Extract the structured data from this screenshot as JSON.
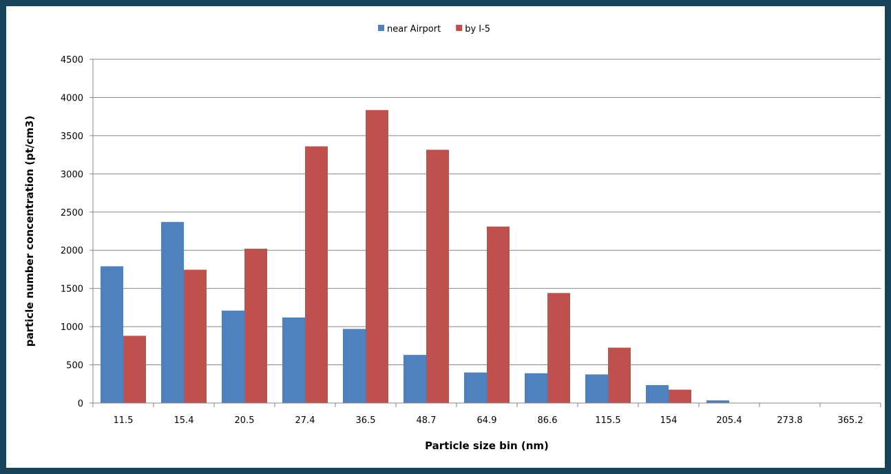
{
  "chart_data": {
    "type": "bar",
    "title": "",
    "xlabel": "Particle size bin (nm)",
    "ylabel": "particle number concentration (pt/cm3)",
    "categories": [
      "11.5",
      "15.4",
      "20.5",
      "27.4",
      "36.5",
      "48.7",
      "64.9",
      "86.6",
      "115.5",
      "154",
      "205.4",
      "273.8",
      "365.2"
    ],
    "series": [
      {
        "name": "near Airport",
        "color": "#4f81bd",
        "values": [
          1790,
          2370,
          1210,
          1120,
          970,
          630,
          400,
          390,
          375,
          235,
          35,
          0,
          0
        ]
      },
      {
        "name": "by I-5",
        "color": "#c0504d",
        "values": [
          880,
          1745,
          2020,
          3360,
          3835,
          3315,
          2310,
          1440,
          725,
          175,
          0,
          0,
          0
        ]
      }
    ],
    "ylim": [
      0,
      4500
    ],
    "yticks": [
      0,
      500,
      1000,
      1500,
      2000,
      2500,
      3000,
      3500,
      4000,
      4500
    ],
    "grid": true,
    "legend_position": "top-center"
  }
}
